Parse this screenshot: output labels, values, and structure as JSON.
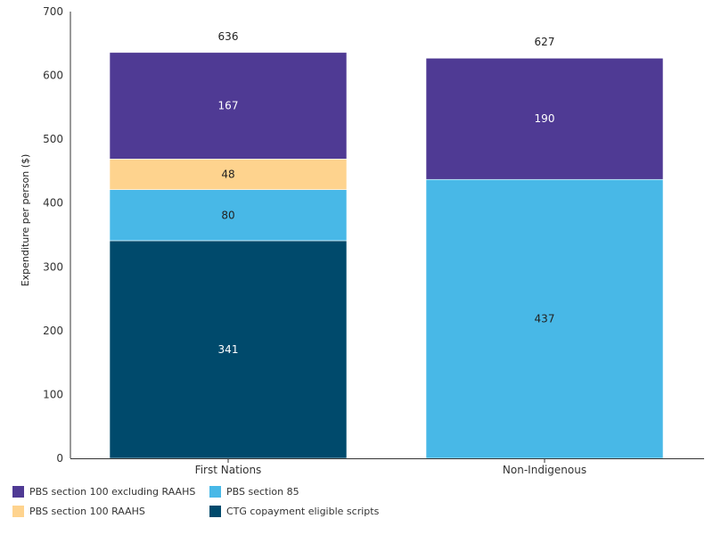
{
  "chart_data": {
    "type": "bar",
    "stacked": true,
    "categories": [
      "First Nations",
      "Non-Indigenous"
    ],
    "ylabel": "Expenditure per person ($)",
    "ylim": [
      0,
      700
    ],
    "yticks": [
      0,
      100,
      200,
      300,
      400,
      500,
      600,
      700
    ],
    "grid": false,
    "legend_position": "bottom-left",
    "totals": [
      636,
      627
    ],
    "series": [
      {
        "name": "CTG copayment eligible scripts",
        "values": [
          341,
          0
        ],
        "color": "#004a6c",
        "label_color": "#ffffff"
      },
      {
        "name": "PBS section 85",
        "values": [
          80,
          437
        ],
        "color": "#48b8e7",
        "label_color": "#222222"
      },
      {
        "name": "PBS section 100 RAAHS",
        "values": [
          48,
          0
        ],
        "color": "#fed38e",
        "label_color": "#222222"
      },
      {
        "name": "PBS section 100 excluding RAAHS",
        "values": [
          167,
          190
        ],
        "color": "#4f3a94",
        "label_color": "#ffffff"
      }
    ]
  },
  "legend": [
    {
      "label": "PBS section 100 excluding RAAHS",
      "color": "#4f3a94"
    },
    {
      "label": "PBS section 85",
      "color": "#48b8e7"
    },
    {
      "label": "PBS section 100 RAAHS",
      "color": "#fed38e"
    },
    {
      "label": "CTG copayment eligible scripts",
      "color": "#004a6c"
    }
  ]
}
